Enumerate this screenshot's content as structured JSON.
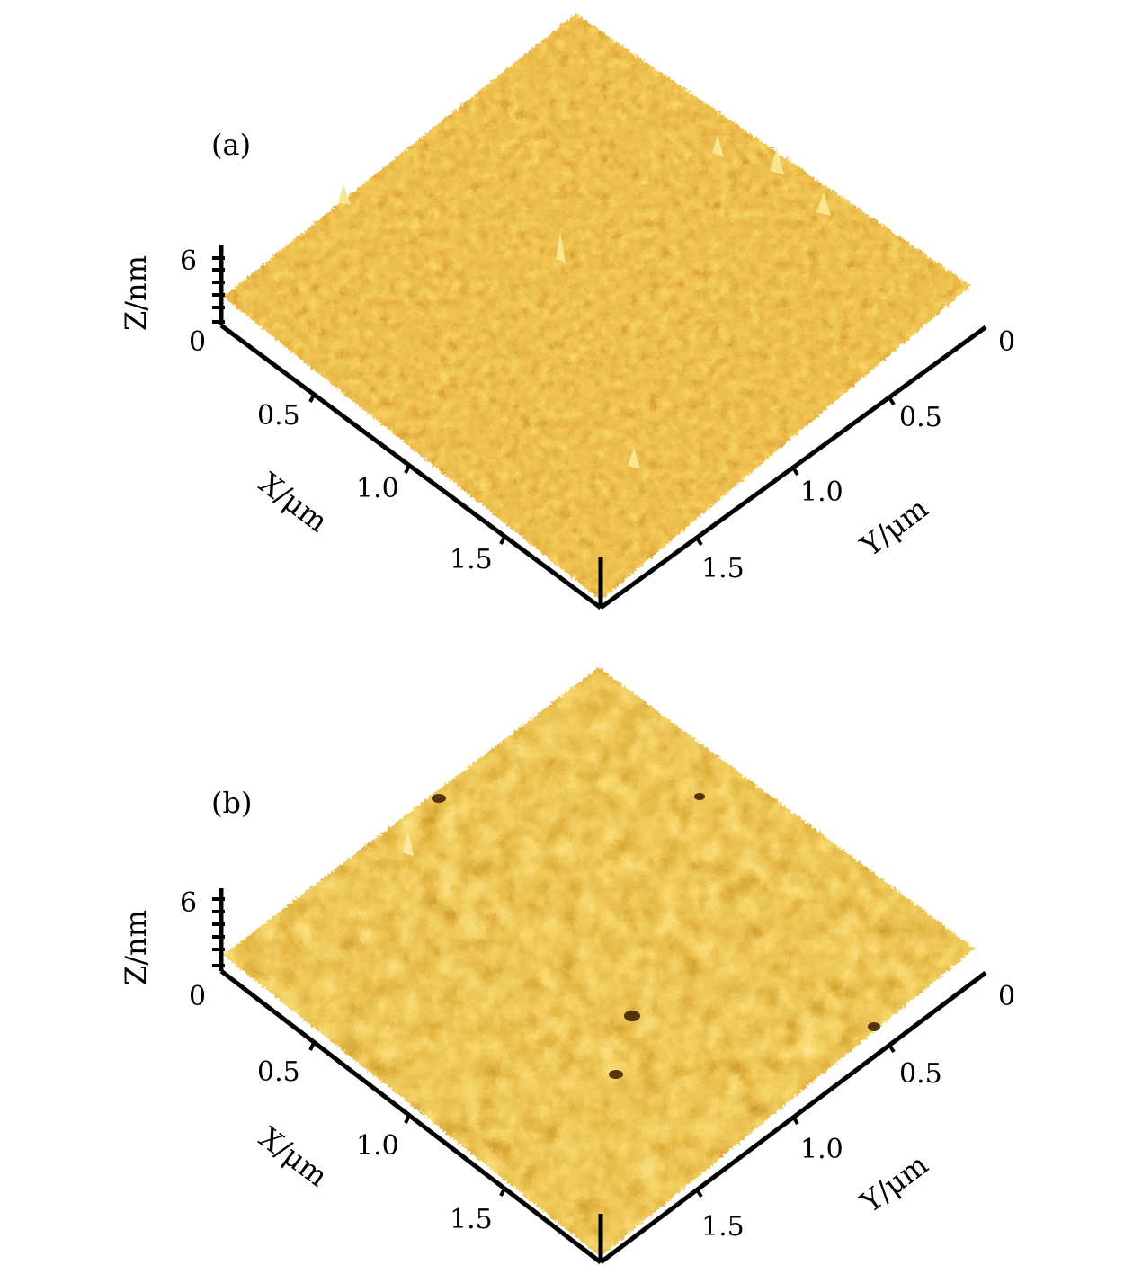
{
  "figure": {
    "panels": [
      {
        "id": "a",
        "label": "(a)",
        "z_axis": {
          "label": "Z/nm",
          "ticks": [
            "6",
            "0"
          ],
          "range": [
            0,
            6
          ]
        },
        "x_axis": {
          "label": "X/μm",
          "ticks": [
            "0.5",
            "1.0",
            "1.5"
          ]
        },
        "y_axis": {
          "label": "Y/μm",
          "ticks": [
            "0",
            "0.5",
            "1.0",
            "1.5"
          ]
        },
        "surface": {
          "description_colors": [
            "#7a3c00",
            "#b86a06",
            "#e0a020",
            "#f6d66a"
          ],
          "texture": "fine-grained"
        }
      },
      {
        "id": "b",
        "label": "(b)",
        "z_axis": {
          "label": "Z/nm",
          "ticks": [
            "6",
            "0"
          ],
          "range": [
            0,
            6
          ]
        },
        "x_axis": {
          "label": "X/μm",
          "ticks": [
            "0.5",
            "1.0",
            "1.5"
          ]
        },
        "y_axis": {
          "label": "Y/μm",
          "ticks": [
            "0",
            "0.5",
            "1.0",
            "1.5"
          ]
        },
        "surface": {
          "description_colors": [
            "#6a3000",
            "#b06408",
            "#e8aa28",
            "#fbe27a"
          ],
          "texture": "coarse-clustered"
        }
      }
    ]
  }
}
